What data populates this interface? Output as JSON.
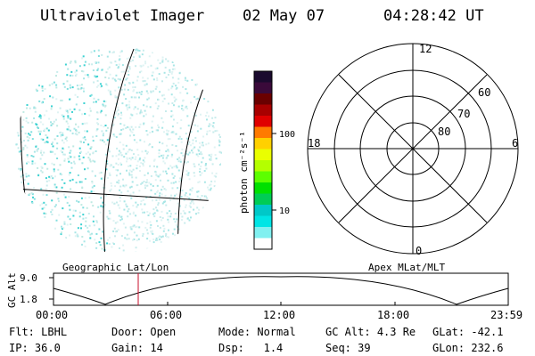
{
  "header": {
    "instrument": "Ultraviolet Imager",
    "date": "02 May 07",
    "time": "04:28:42 UT"
  },
  "colorbar": {
    "unit_label": "photon cm⁻²s⁻¹",
    "ticks": [
      "100",
      "10"
    ],
    "scale": "log",
    "colors_top_to_bottom": [
      "#1a0a2e",
      "#3a0a3a",
      "#6a0000",
      "#a80000",
      "#e00000",
      "#ff7a00",
      "#ffd000",
      "#eaff00",
      "#b4ff00",
      "#5cff00",
      "#00e000",
      "#00cc55",
      "#00c8c8",
      "#00e5e5",
      "#80f0f0",
      "#ffffff"
    ]
  },
  "polar": {
    "lat_labels": [
      "60",
      "70",
      "80"
    ],
    "mlt_labels": {
      "top": "12",
      "left": "18",
      "right": "6",
      "bottom": "0"
    }
  },
  "timeline": {
    "y_label": "GC Alt",
    "y_ticks": [
      "9.0",
      "1.8"
    ],
    "left_caption": "Geographic Lat/Lon",
    "right_caption": "Apex MLat/MLT",
    "x_ticks": [
      "00:00",
      "06:00",
      "12:00",
      "18:00",
      "23:59"
    ],
    "current_time_marker": "04:28"
  },
  "status": [
    {
      "label": "Flt:",
      "value": "LBHL"
    },
    {
      "label": "IP:",
      "value": "36.0"
    },
    {
      "label": "Door:",
      "value": "Open"
    },
    {
      "label": "Gain:",
      "value": "14"
    },
    {
      "label": "Mode:",
      "value": "Normal"
    },
    {
      "label": "Dsp:",
      "value": "1.4"
    },
    {
      "label": "GC Alt:",
      "value": "4.3 Re"
    },
    {
      "label": "Seq:",
      "value": "39"
    },
    {
      "label": "GLat:",
      "value": "-42.1"
    },
    {
      "label": "GLon:",
      "value": "232.6"
    }
  ],
  "icons": {
    "geo_globe": "imager-globe-icon",
    "polar": "polar-grid-icon"
  }
}
